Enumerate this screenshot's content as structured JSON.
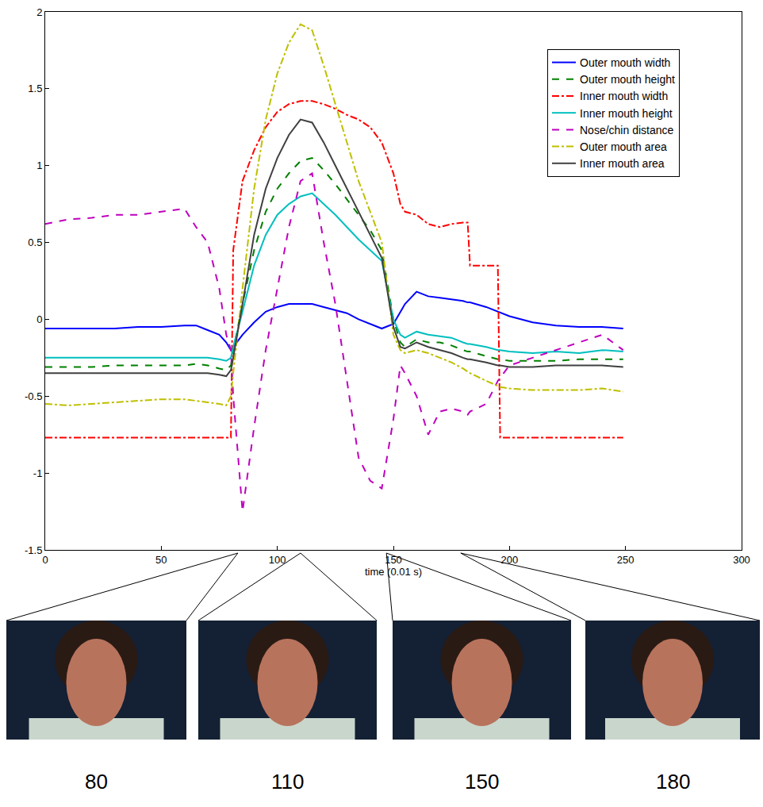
{
  "chart_data": {
    "type": "line",
    "x_label": "time (0.01 s)",
    "x": [
      0,
      10,
      20,
      30,
      40,
      50,
      60,
      65,
      70,
      75,
      78,
      80,
      81,
      85,
      90,
      95,
      100,
      105,
      110,
      115,
      120,
      125,
      130,
      135,
      140,
      145,
      150,
      153,
      155,
      160,
      165,
      170,
      175,
      180,
      182,
      183,
      190,
      195,
      196,
      200,
      210,
      220,
      230,
      240,
      249
    ],
    "series": [
      {
        "name": "Outer mouth width",
        "color": "#0000ff",
        "line_style": "solid",
        "values": [
          -0.06,
          -0.06,
          -0.06,
          -0.06,
          -0.05,
          -0.05,
          -0.04,
          -0.04,
          -0.07,
          -0.1,
          -0.15,
          -0.2,
          -0.18,
          -0.1,
          -0.02,
          0.05,
          0.08,
          0.1,
          0.1,
          0.1,
          0.08,
          0.06,
          0.04,
          0.0,
          -0.03,
          -0.06,
          -0.03,
          0.05,
          0.1,
          0.18,
          0.15,
          0.14,
          0.13,
          0.12,
          0.11,
          0.11,
          0.08,
          0.05,
          0.04,
          0.02,
          -0.02,
          -0.04,
          -0.05,
          -0.05,
          -0.06
        ]
      },
      {
        "name": "Outer mouth height",
        "color": "#008000",
        "line_style": "dash",
        "values": [
          -0.31,
          -0.31,
          -0.31,
          -0.3,
          -0.3,
          -0.3,
          -0.3,
          -0.29,
          -0.3,
          -0.32,
          -0.33,
          -0.3,
          -0.2,
          0.1,
          0.45,
          0.7,
          0.85,
          0.95,
          1.03,
          1.05,
          0.97,
          0.88,
          0.78,
          0.68,
          0.58,
          0.45,
          0.0,
          -0.15,
          -0.18,
          -0.13,
          -0.15,
          -0.15,
          -0.17,
          -0.2,
          -0.21,
          -0.21,
          -0.24,
          -0.26,
          -0.26,
          -0.27,
          -0.27,
          -0.27,
          -0.26,
          -0.26,
          -0.26
        ]
      },
      {
        "name": "Inner mouth width",
        "color": "#ff0000",
        "line_style": "dashdot",
        "values": [
          -0.77,
          -0.77,
          -0.77,
          -0.77,
          -0.77,
          -0.77,
          -0.77,
          -0.77,
          -0.77,
          -0.77,
          -0.77,
          -0.77,
          0.45,
          0.9,
          1.1,
          1.25,
          1.35,
          1.4,
          1.42,
          1.42,
          1.4,
          1.37,
          1.33,
          1.3,
          1.25,
          1.15,
          0.95,
          0.75,
          0.7,
          0.68,
          0.62,
          0.6,
          0.62,
          0.63,
          0.63,
          0.35,
          0.35,
          0.35,
          -0.77,
          -0.77,
          -0.77,
          -0.77,
          -0.77,
          -0.77,
          -0.77
        ]
      },
      {
        "name": "Inner mouth height",
        "color": "#00bfbf",
        "line_style": "solid",
        "values": [
          -0.25,
          -0.25,
          -0.25,
          -0.25,
          -0.25,
          -0.25,
          -0.25,
          -0.25,
          -0.25,
          -0.26,
          -0.27,
          -0.25,
          -0.18,
          0.05,
          0.35,
          0.55,
          0.68,
          0.75,
          0.8,
          0.82,
          0.75,
          0.68,
          0.6,
          0.52,
          0.45,
          0.38,
          0.0,
          -0.1,
          -0.12,
          -0.08,
          -0.1,
          -0.11,
          -0.12,
          -0.15,
          -0.16,
          -0.16,
          -0.18,
          -0.2,
          -0.2,
          -0.21,
          -0.22,
          -0.21,
          -0.22,
          -0.2,
          -0.21
        ]
      },
      {
        "name": "Nose/chin distance",
        "color": "#bf00bf",
        "line_style": "dash",
        "values": [
          0.62,
          0.65,
          0.66,
          0.68,
          0.68,
          0.7,
          0.72,
          0.6,
          0.5,
          0.2,
          -0.1,
          -0.2,
          -0.5,
          -1.25,
          -0.7,
          -0.2,
          0.2,
          0.6,
          0.9,
          0.95,
          0.5,
          0.1,
          -0.4,
          -0.9,
          -1.05,
          -1.1,
          -0.65,
          -0.3,
          -0.35,
          -0.5,
          -0.75,
          -0.6,
          -0.58,
          -0.6,
          -0.62,
          -0.6,
          -0.55,
          -0.4,
          -0.38,
          -0.3,
          -0.25,
          -0.2,
          -0.15,
          -0.1,
          -0.2
        ]
      },
      {
        "name": "Outer mouth area",
        "color": "#bfbf00",
        "line_style": "dashdot",
        "values": [
          -0.55,
          -0.56,
          -0.55,
          -0.54,
          -0.53,
          -0.52,
          -0.52,
          -0.53,
          -0.54,
          -0.55,
          -0.56,
          -0.5,
          -0.35,
          0.2,
          0.85,
          1.3,
          1.6,
          1.8,
          1.92,
          1.88,
          1.65,
          1.4,
          1.15,
          0.9,
          0.7,
          0.5,
          -0.1,
          -0.2,
          -0.22,
          -0.2,
          -0.22,
          -0.25,
          -0.28,
          -0.32,
          -0.34,
          -0.35,
          -0.4,
          -0.43,
          -0.44,
          -0.45,
          -0.46,
          -0.46,
          -0.46,
          -0.45,
          -0.47
        ]
      },
      {
        "name": "Inner mouth area",
        "color": "#404040",
        "line_style": "solid",
        "values": [
          -0.35,
          -0.35,
          -0.35,
          -0.35,
          -0.35,
          -0.35,
          -0.35,
          -0.35,
          -0.35,
          -0.36,
          -0.37,
          -0.33,
          -0.25,
          0.1,
          0.55,
          0.85,
          1.05,
          1.2,
          1.3,
          1.28,
          1.15,
          1.0,
          0.85,
          0.7,
          0.55,
          0.4,
          -0.05,
          -0.18,
          -0.19,
          -0.15,
          -0.18,
          -0.2,
          -0.22,
          -0.25,
          -0.26,
          -0.26,
          -0.28,
          -0.3,
          -0.3,
          -0.31,
          -0.31,
          -0.3,
          -0.3,
          -0.3,
          -0.31
        ]
      }
    ],
    "xlim": [
      0,
      300
    ],
    "ylim": [
      -1.5,
      2
    ],
    "xticks": [
      0,
      50,
      100,
      150,
      200,
      250,
      300
    ],
    "yticks": [
      -1.5,
      -1,
      -0.5,
      0,
      0.5,
      1,
      1.5,
      2
    ],
    "grid": false,
    "legend": "upper right",
    "annotations": [
      {
        "text": "80",
        "x": 83
      },
      {
        "text": "110",
        "x": 110
      },
      {
        "text": "150",
        "x": 147
      },
      {
        "text": "180",
        "x": 179
      }
    ]
  }
}
